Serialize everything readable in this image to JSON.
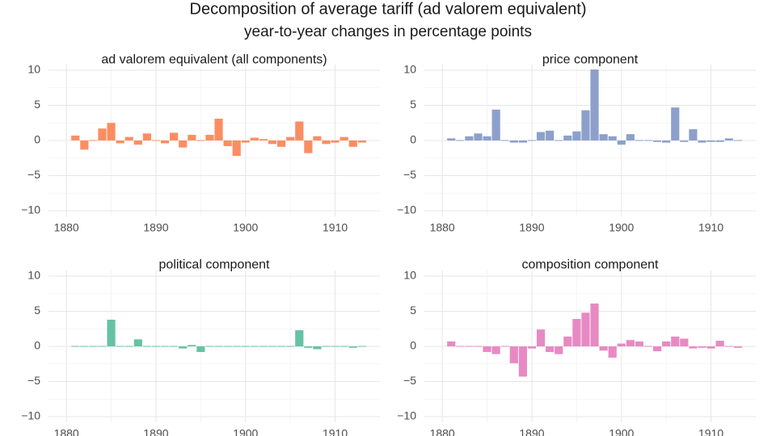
{
  "title": "Decomposition of average tariff (ad valorem equivalent)",
  "subtitle": "year-to-year changes in percentage points",
  "chart_data": {
    "type": "bar",
    "x": [
      1881,
      1882,
      1883,
      1884,
      1885,
      1886,
      1887,
      1888,
      1889,
      1890,
      1891,
      1892,
      1893,
      1894,
      1895,
      1896,
      1897,
      1898,
      1899,
      1900,
      1901,
      1902,
      1903,
      1904,
      1905,
      1906,
      1907,
      1908,
      1909,
      1910,
      1911,
      1912,
      1913
    ],
    "xticks": [
      1880,
      1890,
      1900,
      1910
    ],
    "yticks": [
      -10,
      -5,
      0,
      5,
      10
    ],
    "ylim": [
      -10.8,
      10.8
    ],
    "xlim": [
      1878,
      1915
    ],
    "grid": true,
    "panels": [
      {
        "title": "ad valorem equivalent (all components)",
        "color": "#fc8d62",
        "values": [
          0.7,
          -1.3,
          0.1,
          1.7,
          2.5,
          -0.4,
          0.5,
          -0.6,
          1.0,
          0.0,
          -0.4,
          1.1,
          -1.0,
          0.8,
          0.0,
          0.8,
          3.1,
          -0.8,
          -2.2,
          -0.3,
          0.4,
          0.2,
          -0.5,
          -0.9,
          0.5,
          2.7,
          -1.8,
          0.6,
          -0.5,
          -0.3,
          0.5,
          -0.9,
          -0.3
        ]
      },
      {
        "title": "price component",
        "color": "#8da0cb",
        "values": [
          0.3,
          0.1,
          0.6,
          1.0,
          0.6,
          4.4,
          0.1,
          -0.3,
          -0.3,
          0.1,
          1.2,
          1.4,
          0.0,
          0.7,
          1.3,
          4.3,
          10.1,
          0.9,
          0.6,
          -0.6,
          0.9,
          0.1,
          0.1,
          -0.2,
          -0.3,
          4.7,
          -0.2,
          1.6,
          -0.3,
          -0.2,
          -0.2,
          0.3,
          0.1
        ]
      },
      {
        "title": "political component",
        "color": "#66c2a5",
        "values": [
          0.0,
          0.0,
          0.0,
          0.1,
          3.8,
          0.1,
          0.0,
          1.0,
          0.1,
          0.0,
          0.1,
          0.1,
          -0.3,
          0.2,
          -0.8,
          0.1,
          0.1,
          0.0,
          0.0,
          0.1,
          0.1,
          0.0,
          0.0,
          0.1,
          0.1,
          2.3,
          -0.2,
          -0.4,
          -0.1,
          0.0,
          0.0,
          -0.2,
          0.1
        ]
      },
      {
        "title": "composition component",
        "color": "#e78ac3",
        "values": [
          0.7,
          -0.1,
          0.0,
          0.0,
          -0.8,
          -1.1,
          0.0,
          -2.4,
          -4.3,
          -0.3,
          2.4,
          -0.8,
          -1.1,
          1.4,
          3.9,
          4.8,
          6.1,
          -0.6,
          -1.6,
          0.4,
          0.9,
          0.7,
          -0.1,
          -0.7,
          0.7,
          1.4,
          1.1,
          -0.3,
          -0.2,
          -0.3,
          0.8,
          -0.1,
          -0.2
        ]
      }
    ]
  }
}
